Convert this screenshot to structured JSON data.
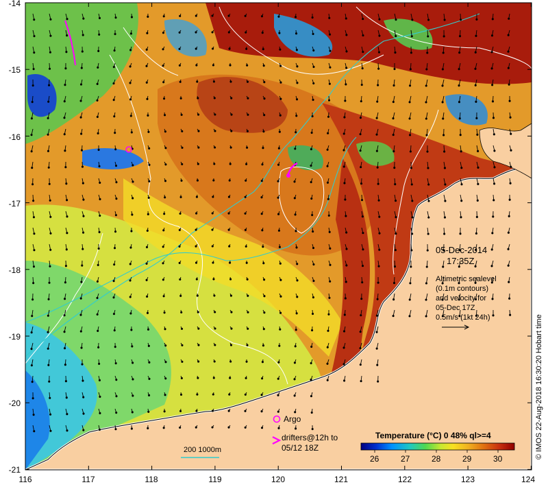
{
  "date": "05-Dec-2014",
  "time": "17:35Z",
  "altimetry": {
    "line1": "Altimetric sealevel",
    "line2": "(0.1m contours)",
    "line3": "and velocity for",
    "line4": "05-Dec 17Z",
    "line5": "0.5m/s (1kt 24h)"
  },
  "legend": {
    "argo": "Argo",
    "drifters_line1": "drifters@12h to",
    "drifters_line2": "05/12 18Z",
    "bathy": "200  1000m",
    "colorbar_title": "Temperature (°C) 0 48% ql>=4",
    "colorbar_ticks": [
      "26",
      "27",
      "28",
      "29",
      "30"
    ]
  },
  "credit": "© IMOS 22-Aug-2018 16:30:20 Hobart time",
  "axes": {
    "x_ticks": [
      "116",
      "117",
      "118",
      "119",
      "120",
      "121",
      "122",
      "123",
      "124"
    ],
    "y_ticks": [
      "-14",
      "-15",
      "-16",
      "-17",
      "-18",
      "-19",
      "-20",
      "-21"
    ]
  },
  "colors": {
    "land": "#f9cfa1",
    "argo": "#ff00ff",
    "drifter": "#ff00ff",
    "bathy_contour": "#33cccc",
    "sealevel_contour": "#ffffff"
  },
  "colormap": [
    "#000080",
    "#0030d0",
    "#0090ff",
    "#20c8c0",
    "#50d850",
    "#c8e830",
    "#f8e020",
    "#f0b020",
    "#e07010",
    "#c83010",
    "#900000"
  ]
}
